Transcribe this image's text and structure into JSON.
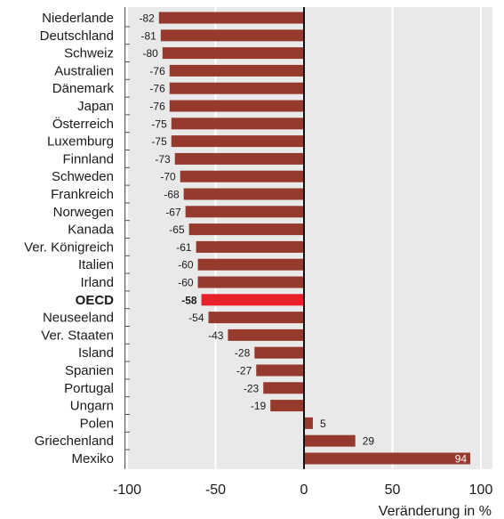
{
  "chart_data": {
    "type": "bar",
    "orientation": "horizontal",
    "categories": [
      "Niederlande",
      "Deutschland",
      "Schweiz",
      "Australien",
      "Dänemark",
      "Japan",
      "Österreich",
      "Luxemburg",
      "Finnland",
      "Schweden",
      "Frankreich",
      "Norwegen",
      "Kanada",
      "Ver. Königreich",
      "Italien",
      "Irland",
      "OECD",
      "Neuseeland",
      "Ver. Staaten",
      "Island",
      "Spanien",
      "Portugal",
      "Ungarn",
      "Polen",
      "Griechenland",
      "Mexiko"
    ],
    "values": [
      -82,
      -81,
      -80,
      -76,
      -76,
      -76,
      -75,
      -75,
      -73,
      -70,
      -68,
      -67,
      -65,
      -61,
      -60,
      -60,
      -58,
      -54,
      -43,
      -28,
      -27,
      -23,
      -19,
      5,
      29,
      94
    ],
    "highlight": "OECD",
    "xlabel": "Veränderung in %",
    "ylabel": "",
    "xlim": [
      -100,
      100
    ],
    "xticks": [
      -100,
      -50,
      0,
      50,
      100
    ],
    "grid": true,
    "colors": {
      "bar": "#963a2e",
      "highlight": "#e8202a",
      "plot_bg": "#e9e9e9",
      "grid": "#ffffff",
      "zero_line": "#111111"
    }
  }
}
